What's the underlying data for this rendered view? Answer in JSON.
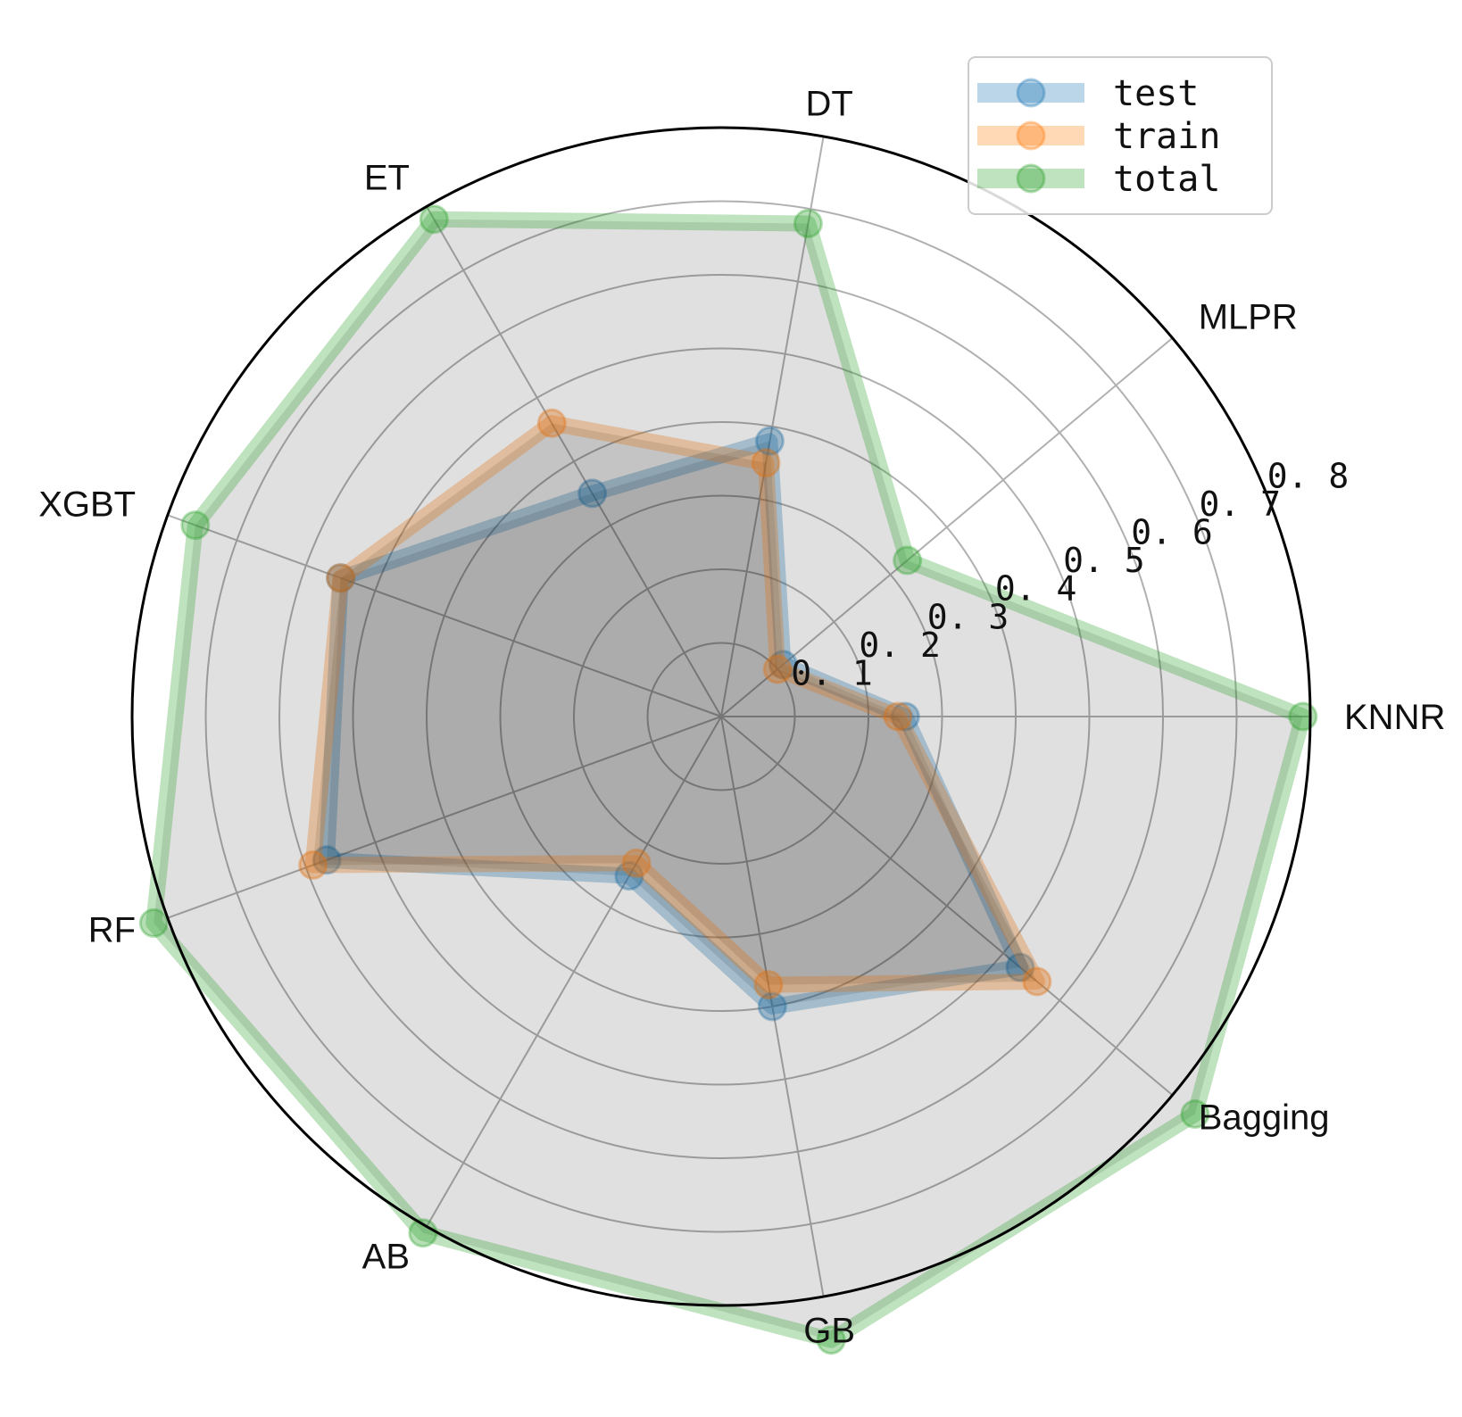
{
  "chart_data": {
    "type": "radar",
    "title": "",
    "categories": [
      "KNNR",
      "MLPR",
      "DT",
      "ET",
      "XGBT",
      "RF",
      "AB",
      "GB",
      "Bagging"
    ],
    "rlim": [
      0,
      0.8
    ],
    "r_ticks": [
      0.1,
      0.2,
      0.3,
      0.4,
      0.5,
      0.6,
      0.7,
      0.8
    ],
    "r_tick_labels": [
      "0. 1",
      "0. 2",
      "0. 3",
      "0. 4",
      "0. 5",
      "0. 6",
      "0. 7",
      "0. 8"
    ],
    "grid": true,
    "legend_position": "top-right",
    "series": [
      {
        "name": "test",
        "color": "#1f77b4",
        "values": [
          0.25,
          0.11,
          0.38,
          0.35,
          0.55,
          0.57,
          0.25,
          0.4,
          0.53
        ]
      },
      {
        "name": "train",
        "color": "#ff7f0e",
        "values": [
          0.24,
          0.1,
          0.35,
          0.46,
          0.55,
          0.59,
          0.23,
          0.37,
          0.56
        ]
      },
      {
        "name": "total",
        "color": "#2ca02c",
        "values": [
          0.79,
          0.33,
          0.68,
          0.78,
          0.76,
          0.82,
          0.81,
          0.86,
          0.84
        ]
      }
    ]
  }
}
